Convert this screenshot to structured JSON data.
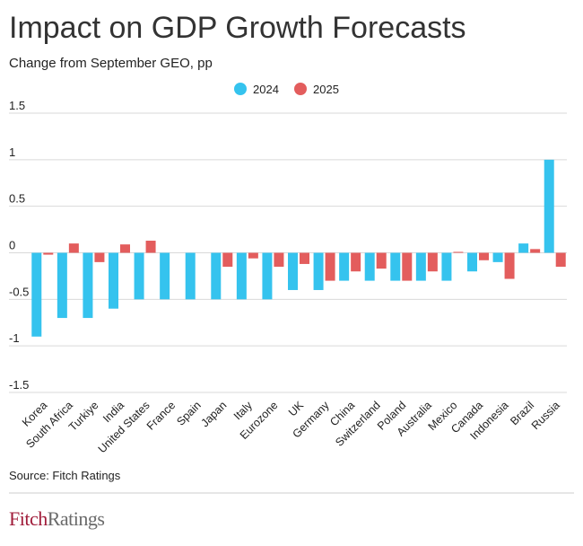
{
  "chart_data": {
    "type": "bar",
    "title": "Impact on GDP Growth Forecasts",
    "subtitle": "Change from September GEO, pp",
    "categories": [
      "Korea",
      "South Africa",
      "Turkiye",
      "India",
      "United States",
      "France",
      "Spain",
      "Japan",
      "Italy",
      "Eurozone",
      "UK",
      "Germany",
      "China",
      "Switzerland",
      "Poland",
      "Australia",
      "Mexico",
      "Canada",
      "Indonesia",
      "Brazil",
      "Russia"
    ],
    "series": [
      {
        "name": "2024",
        "color": "#35c3ee",
        "values": [
          -0.9,
          -0.7,
          -0.7,
          -0.6,
          -0.5,
          -0.5,
          -0.5,
          -0.5,
          -0.5,
          -0.5,
          -0.4,
          -0.4,
          -0.3,
          -0.3,
          -0.3,
          -0.3,
          -0.3,
          -0.2,
          -0.1,
          0.1,
          1.0
        ]
      },
      {
        "name": "2025",
        "color": "#e35d5d",
        "values": [
          -0.02,
          0.1,
          -0.1,
          0.09,
          0.13,
          null,
          null,
          -0.15,
          -0.06,
          -0.15,
          -0.12,
          -0.3,
          -0.2,
          -0.17,
          -0.3,
          -0.2,
          0.01,
          -0.08,
          -0.28,
          0.04,
          -0.15
        ]
      }
    ],
    "ylim": [
      -1.5,
      1.5
    ],
    "yticks": [
      -1.5,
      -1,
      -0.5,
      0,
      0.5,
      1,
      1.5
    ],
    "grid": true,
    "legend": "top",
    "source": "Source: Fitch Ratings",
    "footer": {
      "brand_first": "Fitch",
      "brand_second": "Ratings"
    }
  }
}
